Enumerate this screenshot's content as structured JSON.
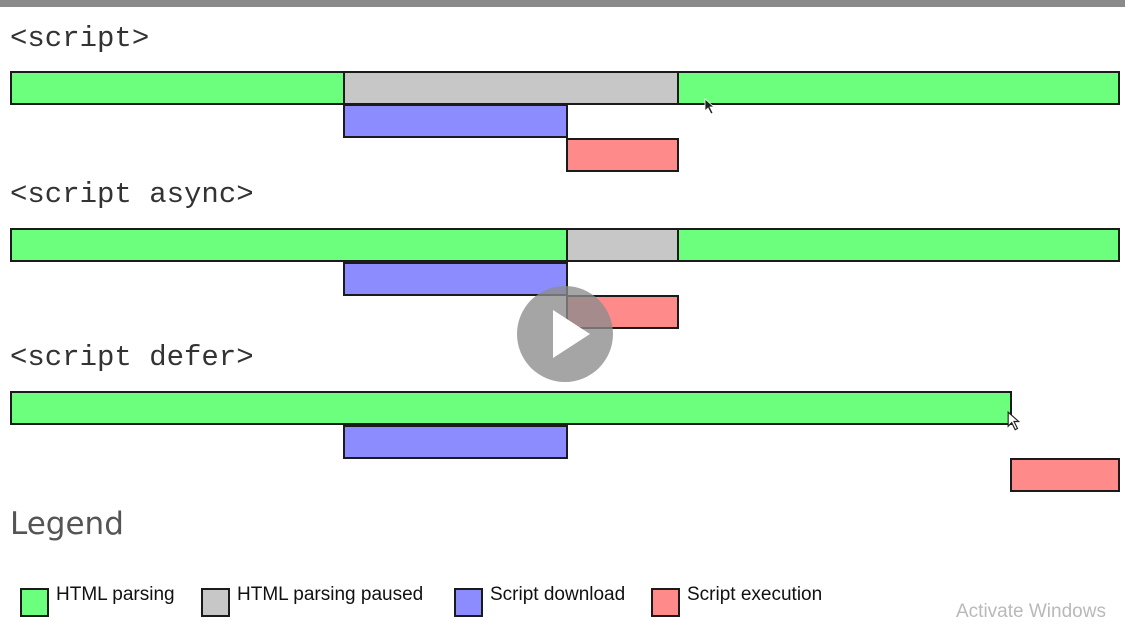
{
  "sections": [
    {
      "heading": "<script>"
    },
    {
      "heading": "<script async>"
    },
    {
      "heading": "<script defer>"
    }
  ],
  "legend": {
    "title": "Legend",
    "items": [
      {
        "label": "HTML parsing",
        "color": "#6cff7e"
      },
      {
        "label": "HTML parsing paused",
        "color": "#c8c7c8"
      },
      {
        "label": "Script download",
        "color": "#8c8cff"
      },
      {
        "label": "Script execution",
        "color": "#ff8a8a"
      }
    ]
  },
  "watermark": "Activate Windows",
  "icons": {
    "play": "play-icon",
    "cursor": "mouse-pointer-icon"
  }
}
